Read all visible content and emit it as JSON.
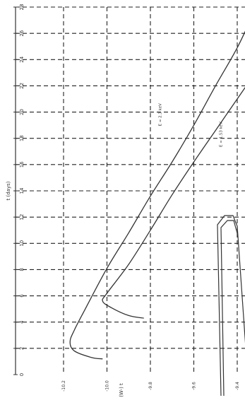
{
  "chart_data": {
    "type": "line",
    "xlabel": "(W-) t",
    "ylabel": "t (days)",
    "xlim": [
      -10.2,
      -9.2
    ],
    "ylim": [
      0,
      28
    ],
    "x_ticks": [
      {
        "value": -10.2,
        "label": "-10.2"
      },
      {
        "value": -10.0,
        "label": "-10.0"
      },
      {
        "value": -9.8,
        "label": "-9.8"
      },
      {
        "value": -9.6,
        "label": "-9.6"
      },
      {
        "value": -9.4,
        "label": "-9.4"
      },
      {
        "value": -9.2,
        "label": "-9.2"
      }
    ],
    "y_ticks": [
      {
        "value": 0,
        "label": "0"
      },
      {
        "value": 2,
        "label": "2"
      },
      {
        "value": 4,
        "label": "4"
      },
      {
        "value": 6,
        "label": "6"
      },
      {
        "value": 8,
        "label": "8"
      },
      {
        "value": 10,
        "label": "10"
      },
      {
        "value": 12,
        "label": "12"
      },
      {
        "value": 14,
        "label": "14"
      },
      {
        "value": 16,
        "label": "16"
      },
      {
        "value": 18,
        "label": "18"
      },
      {
        "value": 20,
        "label": "20"
      },
      {
        "value": 22,
        "label": "22"
      },
      {
        "value": 24,
        "label": "24"
      },
      {
        "value": 26,
        "label": "26"
      },
      {
        "value": 28,
        "label": "28"
      }
    ],
    "grid": true,
    "series": [
      {
        "name": "E = 2.3 keV",
        "label_at": {
          "x": -9.75,
          "y": 19.8
        },
        "points": [
          {
            "x": -9.32,
            "y": 27.7
          },
          {
            "x": -9.4,
            "y": 24.9
          },
          {
            "x": -9.5,
            "y": 22.0
          },
          {
            "x": -9.6,
            "y": 19.0
          },
          {
            "x": -9.7,
            "y": 16.2
          },
          {
            "x": -9.8,
            "y": 13.6
          },
          {
            "x": -9.9,
            "y": 10.8
          },
          {
            "x": -10.0,
            "y": 8.1
          },
          {
            "x": -10.1,
            "y": 5.0
          },
          {
            "x": -10.15,
            "y": 3.4
          },
          {
            "x": -10.17,
            "y": 2.5
          },
          {
            "x": -10.15,
            "y": 1.8
          },
          {
            "x": -10.07,
            "y": 1.3
          },
          {
            "x": -10.02,
            "y": 1.2
          }
        ]
      },
      {
        "name": "E = 1.53 keV",
        "label_at": {
          "x": -9.47,
          "y": 18.3
        },
        "points": [
          {
            "x": -9.22,
            "y": 25.4
          },
          {
            "x": -9.3,
            "y": 23.4
          },
          {
            "x": -9.4,
            "y": 21.0
          },
          {
            "x": -9.5,
            "y": 18.6
          },
          {
            "x": -9.6,
            "y": 16.2
          },
          {
            "x": -9.7,
            "y": 13.7
          },
          {
            "x": -9.8,
            "y": 11.0
          },
          {
            "x": -9.9,
            "y": 8.4
          },
          {
            "x": -10.0,
            "y": 6.2
          },
          {
            "x": -10.02,
            "y": 5.6
          },
          {
            "x": -9.98,
            "y": 5.1
          },
          {
            "x": -9.9,
            "y": 4.5
          },
          {
            "x": -9.83,
            "y": 4.3
          }
        ]
      }
    ]
  }
}
